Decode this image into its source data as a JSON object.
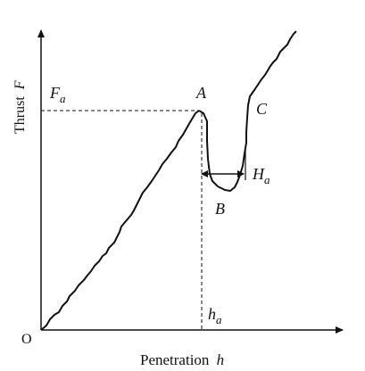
{
  "axes": {
    "y_label_word": "Thrust",
    "y_label_symbol": "F",
    "x_label_word": "Penetration",
    "x_label_symbol": "h",
    "origin_label": "O"
  },
  "annotations": {
    "Fa": {
      "main": "F",
      "sub": "a"
    },
    "ha": {
      "main": "h",
      "sub": "a"
    },
    "Ha": {
      "main": "H",
      "sub": "a"
    },
    "A": "A",
    "B": "B",
    "C": "C"
  },
  "colors": {
    "ink": "#111111",
    "background": "#ffffff"
  }
}
